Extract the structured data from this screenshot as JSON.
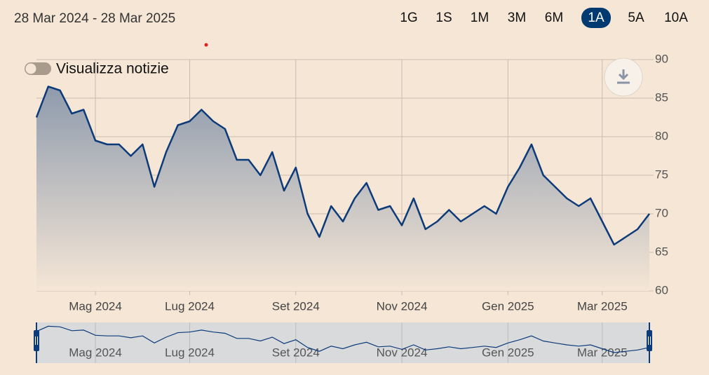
{
  "header": {
    "date_range": "28 Mar 2024 - 28 Mar 2025",
    "ranges": [
      "1G",
      "1S",
      "1M",
      "3M",
      "6M",
      "1A",
      "5A",
      "10A"
    ],
    "selected_range_index": 5
  },
  "news_toggle": "Visualizza notizie",
  "chart_data": {
    "type": "area",
    "categories": [
      null,
      null,
      null,
      null,
      null,
      "Mag 2024",
      null,
      null,
      null,
      null,
      null,
      null,
      null,
      "Lug 2024",
      null,
      null,
      null,
      null,
      null,
      null,
      null,
      null,
      "Set 2024",
      null,
      null,
      null,
      null,
      null,
      null,
      null,
      null,
      "Nov 2024",
      null,
      null,
      null,
      null,
      null,
      null,
      null,
      null,
      "Gen 2025",
      null,
      null,
      null,
      null,
      null,
      null,
      null,
      "Mar 2025",
      null,
      null,
      null,
      null
    ],
    "values": [
      82.5,
      86.5,
      86,
      83,
      83.5,
      79.5,
      79,
      79,
      77.5,
      79,
      73.5,
      78,
      81.5,
      82,
      83.5,
      82,
      81,
      77,
      77,
      75,
      78,
      73,
      76,
      70,
      67,
      71,
      69,
      72,
      74,
      70.5,
      71,
      68.5,
      72,
      68,
      69,
      70.5,
      69,
      70,
      71,
      70,
      73.5,
      76,
      79,
      75,
      73.5,
      72,
      71,
      72,
      69,
      66,
      67,
      68,
      70
    ],
    "color": "#0d3b7a",
    "ylim": [
      60,
      90
    ],
    "yticks": [
      60,
      65,
      70,
      75,
      80,
      85,
      90
    ],
    "grid": true,
    "y_axis_side": "right",
    "navigator": true
  }
}
